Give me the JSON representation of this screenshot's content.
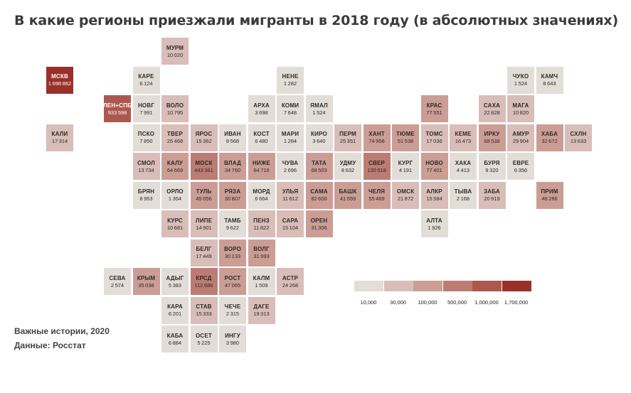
{
  "title": "В какие регионы приезжали мигранты в 2018 году (в абсолютных значениях)",
  "footer": {
    "source_line1": "Важные истории, 2020",
    "source_line2": "Данные: Росстат"
  },
  "colors": {
    "scale": [
      "#e3ddd7",
      "#d9bdb8",
      "#cc9d95",
      "#bd7c73",
      "#ad584f",
      "#9a302a"
    ]
  },
  "legend": {
    "labels": [
      "10,000",
      "30,000",
      "100,000",
      "500,000",
      "1,000,000",
      "1,700,000"
    ]
  },
  "chart_data": {
    "type": "heatmap",
    "title": "В какие регионы приезжали мигранты в 2018 году (в абсолютных значениях)",
    "color_scale_thresholds": [
      10000,
      30000,
      100000,
      500000,
      1000000,
      1700000
    ],
    "cells": [
      {
        "code": "МУРМ",
        "value": 10020,
        "row": 0,
        "col": 5
      },
      {
        "code": "МСКВ",
        "value": 1698862,
        "row": 1,
        "col": 1
      },
      {
        "code": "КАРЕ",
        "value": 6124,
        "row": 1,
        "col": 4
      },
      {
        "code": "НЕНЕ",
        "value": 1282,
        "row": 1,
        "col": 9
      },
      {
        "code": "ЧУКО",
        "value": 1524,
        "row": 1,
        "col": 17
      },
      {
        "code": "КАМЧ",
        "value": 8643,
        "row": 1,
        "col": 18
      },
      {
        "code": "ЛЕН+СПБ",
        "value": 933598,
        "row": 2,
        "col": 3
      },
      {
        "code": "НОВГ",
        "value": 7991,
        "row": 2,
        "col": 4
      },
      {
        "code": "ВОЛО",
        "value": 10795,
        "row": 2,
        "col": 5
      },
      {
        "code": "АРХА",
        "value": 3698,
        "row": 2,
        "col": 8
      },
      {
        "code": "КОМИ",
        "value": 7648,
        "row": 2,
        "col": 9
      },
      {
        "code": "ЯМАЛ",
        "value": 1524,
        "row": 2,
        "col": 10
      },
      {
        "code": "КРАС",
        "value": 77551,
        "row": 2,
        "col": 14
      },
      {
        "code": "САХА",
        "value": 22828,
        "row": 2,
        "col": 16
      },
      {
        "code": "МАГА",
        "value": 10820,
        "row": 2,
        "col": 17
      },
      {
        "code": "КАЛИ",
        "value": 17314,
        "row": 3,
        "col": 1
      },
      {
        "code": "ПСКО",
        "value": 7850,
        "row": 3,
        "col": 4
      },
      {
        "code": "ТВЕР",
        "value": 25468,
        "row": 3,
        "col": 5
      },
      {
        "code": "ЯРОС",
        "value": 15362,
        "row": 3,
        "col": 6
      },
      {
        "code": "ИВАН",
        "value": 8568,
        "row": 3,
        "col": 7
      },
      {
        "code": "КОСТ",
        "value": 6480,
        "row": 3,
        "col": 8
      },
      {
        "code": "МАРИ",
        "value": 1284,
        "row": 3,
        "col": 9
      },
      {
        "code": "КИРО",
        "value": 3640,
        "row": 3,
        "col": 10
      },
      {
        "code": "ПЕРМ",
        "value": 25351,
        "row": 3,
        "col": 11
      },
      {
        "code": "ХАНТ",
        "value": 74956,
        "row": 3,
        "col": 12
      },
      {
        "code": "ТЮМЕ",
        "value": 51538,
        "row": 3,
        "col": 13
      },
      {
        "code": "ТОМС",
        "value": 17036,
        "row": 3,
        "col": 14
      },
      {
        "code": "КЕМЕ",
        "value": 16473,
        "row": 3,
        "col": 15
      },
      {
        "code": "ИРКУ",
        "value": 68538,
        "row": 3,
        "col": 16
      },
      {
        "code": "АМУР",
        "value": 29904,
        "row": 3,
        "col": 17
      },
      {
        "code": "ХАБА",
        "value": 32672,
        "row": 3,
        "col": 18
      },
      {
        "code": "СХЛН",
        "value": 13633,
        "row": 3,
        "col": 19
      },
      {
        "code": "СМОЛ",
        "value": 13734,
        "row": 4,
        "col": 4
      },
      {
        "code": "КАЛУ",
        "value": 64669,
        "row": 4,
        "col": 5
      },
      {
        "code": "МОСК",
        "value": 443361,
        "row": 4,
        "col": 6
      },
      {
        "code": "ВЛАД",
        "value": 34760,
        "row": 4,
        "col": 7
      },
      {
        "code": "НИЖЕ",
        "value": 64716,
        "row": 4,
        "col": 8
      },
      {
        "code": "ЧУВА",
        "value": 2696,
        "row": 4,
        "col": 9
      },
      {
        "code": "ТАТА",
        "value": 68503,
        "row": 4,
        "col": 10
      },
      {
        "code": "УДМУ",
        "value": 8632,
        "row": 4,
        "col": 11
      },
      {
        "code": "СВЕР",
        "value": 130518,
        "row": 4,
        "col": 12
      },
      {
        "code": "КУРГ",
        "value": 4191,
        "row": 4,
        "col": 13
      },
      {
        "code": "НОВО",
        "value": 77401,
        "row": 4,
        "col": 14
      },
      {
        "code": "ХАКА",
        "value": 4413,
        "row": 4,
        "col": 15
      },
      {
        "code": "БУРЯ",
        "value": 9320,
        "row": 4,
        "col": 16
      },
      {
        "code": "ЕВРЕ",
        "value": 6356,
        "row": 4,
        "col": 17
      },
      {
        "code": "БРЯН",
        "value": 8953,
        "row": 5,
        "col": 4
      },
      {
        "code": "ОРЛО",
        "value": 1354,
        "row": 5,
        "col": 5
      },
      {
        "code": "ТУЛЬ",
        "value": 45056,
        "row": 5,
        "col": 6
      },
      {
        "code": "РЯЗА",
        "value": 30807,
        "row": 5,
        "col": 7
      },
      {
        "code": "МОРД",
        "value": 6664,
        "row": 5,
        "col": 8
      },
      {
        "code": "УЛЬЯ",
        "value": 11612,
        "row": 5,
        "col": 9
      },
      {
        "code": "САМА",
        "value": 82600,
        "row": 5,
        "col": 10
      },
      {
        "code": "БАШК",
        "value": 41559,
        "row": 5,
        "col": 11
      },
      {
        "code": "ЧЕЛЯ",
        "value": 55469,
        "row": 5,
        "col": 12
      },
      {
        "code": "ОМСК",
        "value": 21872,
        "row": 5,
        "col": 13
      },
      {
        "code": "АЛКР",
        "value": 15584,
        "row": 5,
        "col": 14
      },
      {
        "code": "ТЫВА",
        "value": 2168,
        "row": 5,
        "col": 15
      },
      {
        "code": "ЗАБА",
        "value": 20919,
        "row": 5,
        "col": 16
      },
      {
        "code": "ПРИМ",
        "value": 48286,
        "row": 5,
        "col": 18
      },
      {
        "code": "КУРС",
        "value": 10681,
        "row": 6,
        "col": 5
      },
      {
        "code": "ЛИПЕ",
        "value": 14901,
        "row": 6,
        "col": 6
      },
      {
        "code": "ТАМБ",
        "value": 9622,
        "row": 6,
        "col": 7
      },
      {
        "code": "ПЕНЗ",
        "value": 11822,
        "row": 6,
        "col": 8
      },
      {
        "code": "САРА",
        "value": 15104,
        "row": 6,
        "col": 9
      },
      {
        "code": "ОРЕН",
        "value": 31306,
        "row": 6,
        "col": 10
      },
      {
        "code": "АЛТА",
        "value": 1926,
        "row": 6,
        "col": 14
      },
      {
        "code": "БЕЛГ",
        "value": 17449,
        "row": 7,
        "col": 6
      },
      {
        "code": "ВОРО",
        "value": 30133,
        "row": 7,
        "col": 7
      },
      {
        "code": "ВОЛГ",
        "value": 31993,
        "row": 7,
        "col": 8
      },
      {
        "code": "СЕВА",
        "value": 2574,
        "row": 8,
        "col": 3
      },
      {
        "code": "КРЫМ",
        "value": 35038,
        "row": 8,
        "col": 4
      },
      {
        "code": "АДЫГ",
        "value": 5383,
        "row": 8,
        "col": 5
      },
      {
        "code": "КРСД",
        "value": 112686,
        "row": 8,
        "col": 6
      },
      {
        "code": "РОСТ",
        "value": 47065,
        "row": 8,
        "col": 7
      },
      {
        "code": "КАЛМ",
        "value": 1509,
        "row": 8,
        "col": 8
      },
      {
        "code": "АСТР",
        "value": 24268,
        "row": 8,
        "col": 9
      },
      {
        "code": "КАРА",
        "value": 6201,
        "row": 9,
        "col": 5
      },
      {
        "code": "СТАВ",
        "value": 15333,
        "row": 9,
        "col": 6
      },
      {
        "code": "ЧЕЧЕ",
        "value": 2315,
        "row": 9,
        "col": 7
      },
      {
        "code": "ДАГЕ",
        "value": 19313,
        "row": 9,
        "col": 8
      },
      {
        "code": "КАБА",
        "value": 6884,
        "row": 10,
        "col": 5
      },
      {
        "code": "ОСЕТ",
        "value": 5225,
        "row": 10,
        "col": 6
      },
      {
        "code": "ИНГУ",
        "value": 3980,
        "row": 10,
        "col": 7
      }
    ]
  }
}
